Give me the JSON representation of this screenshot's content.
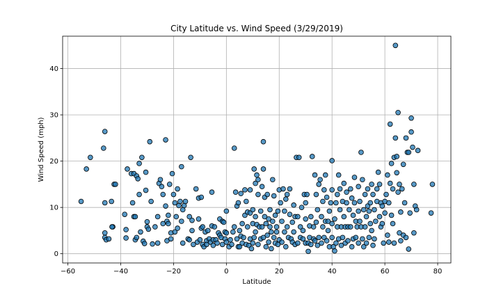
{
  "chart_data": {
    "type": "scatter",
    "title": "City Latitude vs. Wind Speed (3/29/2019)",
    "xlabel": "Latitude",
    "ylabel": "Wind Speed (mph)",
    "xlim": [
      -62,
      85
    ],
    "ylim": [
      -2,
      47
    ],
    "xticks": [
      -60,
      -40,
      -20,
      0,
      20,
      40,
      60,
      80
    ],
    "yticks": [
      0,
      10,
      20,
      30,
      40
    ],
    "xtick_labels": [
      "−60",
      "−40",
      "−20",
      "0",
      "20",
      "40",
      "60",
      "80"
    ],
    "ytick_labels": [
      "0",
      "10",
      "20",
      "30",
      "40"
    ],
    "grid": true,
    "colors": {
      "marker_fill": "#1f77b4",
      "marker_edge": "#000000",
      "grid": "#b0b0b0"
    },
    "points": [
      [
        -55,
        11.3
      ],
      [
        -53,
        18.3
      ],
      [
        -51.5,
        20.8
      ],
      [
        -46.5,
        22.8
      ],
      [
        -46,
        26.4
      ],
      [
        -46,
        11
      ],
      [
        -46,
        4.5
      ],
      [
        -46,
        3.5
      ],
      [
        -45.5,
        3
      ],
      [
        -44.5,
        3.2
      ],
      [
        -43.5,
        11.3
      ],
      [
        -43,
        5.8
      ],
      [
        -43.3,
        5.8
      ],
      [
        -42.5,
        15
      ],
      [
        -42,
        15
      ],
      [
        -38.5,
        8.5
      ],
      [
        -38,
        5.2
      ],
      [
        -38,
        3.4
      ],
      [
        -37.5,
        18.3
      ],
      [
        -36,
        17.3
      ],
      [
        -35.5,
        11
      ],
      [
        -35,
        17.3
      ],
      [
        -35,
        8
      ],
      [
        -34.5,
        3
      ],
      [
        -34.5,
        8
      ],
      [
        -34,
        16.8
      ],
      [
        -34,
        3.5
      ],
      [
        -33.5,
        16.2
      ],
      [
        -33,
        19.5
      ],
      [
        -33,
        12.8
      ],
      [
        -32.5,
        4.7
      ],
      [
        -32,
        20.8
      ],
      [
        -31.5,
        2.7
      ],
      [
        -31,
        2.2
      ],
      [
        -30.5,
        17.6
      ],
      [
        -30.5,
        13.7
      ],
      [
        -30,
        6.9
      ],
      [
        -30,
        5.8
      ],
      [
        -29.5,
        5.3
      ],
      [
        -29,
        24.2
      ],
      [
        -28.5,
        11.3
      ],
      [
        -28,
        2.1
      ],
      [
        -27,
        5.8
      ],
      [
        -26,
        8
      ],
      [
        -26,
        2.3
      ],
      [
        -25.5,
        15.2
      ],
      [
        -25,
        16
      ],
      [
        -24.5,
        14.5
      ],
      [
        -24,
        12.8
      ],
      [
        -24,
        6.5
      ],
      [
        -23,
        24.6
      ],
      [
        -23,
        10.3
      ],
      [
        -22.5,
        7
      ],
      [
        -22.5,
        2.8
      ],
      [
        -22,
        8.3
      ],
      [
        -22,
        6.5
      ],
      [
        -21.5,
        15
      ],
      [
        -21,
        4.5
      ],
      [
        -21,
        3.2
      ],
      [
        -20.5,
        17.3
      ],
      [
        -20,
        12.8
      ],
      [
        -19.5,
        11
      ],
      [
        -19.5,
        4.7
      ],
      [
        -19,
        8
      ],
      [
        -18.5,
        14
      ],
      [
        -18.5,
        5.5
      ],
      [
        -18,
        10.4
      ],
      [
        -17.5,
        11.3
      ],
      [
        -17,
        18.8
      ],
      [
        -17,
        7
      ],
      [
        -16.5,
        2.3
      ],
      [
        -16.5,
        9.5
      ],
      [
        -16,
        10.4
      ],
      [
        -15.5,
        11.3
      ],
      [
        -14.5,
        3.2
      ],
      [
        -14,
        8
      ],
      [
        -14,
        3
      ],
      [
        -13.5,
        20.8
      ],
      [
        -13,
        7.2
      ],
      [
        -13,
        5
      ],
      [
        -12.5,
        2
      ],
      [
        -11.5,
        14
      ],
      [
        -11,
        2.5
      ],
      [
        -10.5,
        12
      ],
      [
        -10.5,
        7.5
      ],
      [
        -10,
        3
      ],
      [
        -9.5,
        5.5
      ],
      [
        -9.5,
        12.2
      ],
      [
        -9,
        2
      ],
      [
        -9,
        5.8
      ],
      [
        -8.5,
        1.5
      ],
      [
        -8,
        4.7
      ],
      [
        -7.5,
        2.8
      ],
      [
        -7.5,
        2
      ],
      [
        -7,
        5
      ],
      [
        -6.5,
        3.2
      ],
      [
        -6,
        2.5
      ],
      [
        -5.5,
        13.3
      ],
      [
        -5.5,
        6
      ],
      [
        -5,
        3
      ],
      [
        -5,
        1.8
      ],
      [
        -4.5,
        5.8
      ],
      [
        -4,
        3
      ],
      [
        -3.5,
        2.3
      ],
      [
        -3,
        4.5
      ],
      [
        -2.5,
        7.5
      ],
      [
        -2.5,
        4
      ],
      [
        -2,
        3.5
      ],
      [
        -1.5,
        2
      ],
      [
        -1.5,
        7
      ],
      [
        -1,
        6.8
      ],
      [
        -0.5,
        4.7
      ],
      [
        -0.5,
        3.2
      ],
      [
        0,
        2.5
      ],
      [
        0,
        4.5
      ],
      [
        0,
        9.2
      ],
      [
        1,
        1.5
      ],
      [
        1.5,
        3
      ],
      [
        2,
        2
      ],
      [
        2.5,
        4.7
      ],
      [
        3,
        22.8
      ],
      [
        3,
        5.8
      ],
      [
        3.5,
        13.3
      ],
      [
        4,
        10.3
      ],
      [
        4,
        3.2
      ],
      [
        4.5,
        1.5
      ],
      [
        4.5,
        11
      ],
      [
        5,
        5
      ],
      [
        5,
        1.5
      ],
      [
        5.5,
        13
      ],
      [
        5.5,
        3.8
      ],
      [
        6,
        6.5
      ],
      [
        6,
        2.3
      ],
      [
        6.5,
        3.5
      ],
      [
        7,
        8.3
      ],
      [
        7,
        13.8
      ],
      [
        7.5,
        2
      ],
      [
        7.5,
        11.3
      ],
      [
        8,
        5.8
      ],
      [
        8,
        9
      ],
      [
        8.5,
        1.8
      ],
      [
        9,
        13.8
      ],
      [
        9,
        8.8
      ],
      [
        9,
        3.2
      ],
      [
        9.5,
        1.1
      ],
      [
        10,
        9.5
      ],
      [
        10,
        6.5
      ],
      [
        10,
        2.3
      ],
      [
        10.5,
        18.3
      ],
      [
        10.5,
        3.5
      ],
      [
        11,
        15.2
      ],
      [
        11,
        8
      ],
      [
        11,
        4.7
      ],
      [
        11.5,
        6.3
      ],
      [
        11.5,
        17
      ],
      [
        12,
        12.8
      ],
      [
        12,
        16
      ],
      [
        12,
        2
      ],
      [
        12.5,
        5.8
      ],
      [
        13,
        3.2
      ],
      [
        13,
        9.2
      ],
      [
        13.5,
        14.5
      ],
      [
        13.5,
        5.8
      ],
      [
        14,
        24.2
      ],
      [
        14,
        3.5
      ],
      [
        14,
        18.3
      ],
      [
        14.5,
        12.2
      ],
      [
        14.5,
        8
      ],
      [
        15,
        6.5
      ],
      [
        15,
        1.5
      ],
      [
        15.5,
        4
      ],
      [
        15.5,
        12.8
      ],
      [
        16,
        7.5
      ],
      [
        16,
        2.5
      ],
      [
        16.5,
        5.8
      ],
      [
        16.5,
        9.5
      ],
      [
        17,
        1.1
      ],
      [
        17,
        4.7
      ],
      [
        17.5,
        7
      ],
      [
        17.5,
        16
      ],
      [
        18,
        3.5
      ],
      [
        18,
        12.5
      ],
      [
        18.5,
        2.3
      ],
      [
        18.5,
        8.3
      ],
      [
        19,
        4.7
      ],
      [
        19,
        5.8
      ],
      [
        19.5,
        2
      ],
      [
        19.5,
        9.2
      ],
      [
        20,
        13.8
      ],
      [
        20,
        3
      ],
      [
        20.5,
        11
      ],
      [
        21,
        7
      ],
      [
        21,
        2.5
      ],
      [
        21.5,
        14
      ],
      [
        22,
        9.2
      ],
      [
        22,
        4.7
      ],
      [
        22.5,
        1.5
      ],
      [
        22.5,
        11.8
      ],
      [
        23,
        12.8
      ],
      [
        23,
        5.8
      ],
      [
        23.5,
        3.5
      ],
      [
        24,
        14
      ],
      [
        24,
        8.5
      ],
      [
        24.5,
        3.2
      ],
      [
        25,
        2.5
      ],
      [
        25,
        6.8
      ],
      [
        25.5,
        10.5
      ],
      [
        25.5,
        4.7
      ],
      [
        26,
        8
      ],
      [
        26,
        2
      ],
      [
        26.5,
        20.8
      ],
      [
        27,
        2.3
      ],
      [
        27,
        8
      ],
      [
        27.5,
        20.8
      ],
      [
        28,
        5.8
      ],
      [
        28,
        3.5
      ],
      [
        28.5,
        10
      ],
      [
        29,
        3.2
      ],
      [
        29,
        5
      ],
      [
        29.5,
        12.8
      ],
      [
        30,
        11
      ],
      [
        30,
        2.3
      ],
      [
        30,
        7.5
      ],
      [
        30.5,
        12.8
      ],
      [
        31,
        2.3
      ],
      [
        31,
        0.5
      ],
      [
        31.5,
        6
      ],
      [
        31.5,
        3.5
      ],
      [
        32,
        8
      ],
      [
        32,
        2
      ],
      [
        32.5,
        21
      ],
      [
        33,
        5.8
      ],
      [
        33,
        3.2
      ],
      [
        33.5,
        17
      ],
      [
        33.5,
        2.8
      ],
      [
        34,
        12.8
      ],
      [
        34,
        6.8
      ],
      [
        34.5,
        1.8
      ],
      [
        34.5,
        9.5
      ],
      [
        35,
        15
      ],
      [
        35,
        3.5
      ],
      [
        35.5,
        16
      ],
      [
        36,
        2.3
      ],
      [
        36,
        8
      ],
      [
        36.5,
        11.3
      ],
      [
        36.5,
        5.8
      ],
      [
        37,
        13.8
      ],
      [
        37,
        3.5
      ],
      [
        37.5,
        17
      ],
      [
        37.5,
        7
      ],
      [
        38,
        2.8
      ],
      [
        38,
        12.2
      ],
      [
        38.5,
        7
      ],
      [
        38.5,
        5
      ],
      [
        39,
        1.5
      ],
      [
        39,
        9.2
      ],
      [
        39.5,
        11
      ],
      [
        40,
        20.1
      ],
      [
        40,
        13.8
      ],
      [
        40,
        6.5
      ],
      [
        40,
        3.5
      ],
      [
        40.5,
        1.5
      ],
      [
        41,
        0.6
      ],
      [
        41,
        7.5
      ],
      [
        41.5,
        2.3
      ],
      [
        41.5,
        11
      ],
      [
        42,
        12.8
      ],
      [
        42,
        5.8
      ],
      [
        42.5,
        17
      ],
      [
        42.5,
        3.2
      ],
      [
        43,
        9.5
      ],
      [
        43,
        14
      ],
      [
        43.5,
        5.8
      ],
      [
        43.5,
        1.8
      ],
      [
        44,
        11.3
      ],
      [
        44,
        3.5
      ],
      [
        44.5,
        15.2
      ],
      [
        44.5,
        8
      ],
      [
        45,
        5.8
      ],
      [
        45,
        2.3
      ],
      [
        45.5,
        11
      ],
      [
        45.5,
        13.3
      ],
      [
        46,
        5.8
      ],
      [
        46,
        2.8
      ],
      [
        46.5,
        9.5
      ],
      [
        47,
        14
      ],
      [
        47,
        5.8
      ],
      [
        47.5,
        1.5
      ],
      [
        47.5,
        12
      ],
      [
        48,
        3.2
      ],
      [
        48,
        8.3
      ],
      [
        48.5,
        16.5
      ],
      [
        48.5,
        11
      ],
      [
        49,
        7
      ],
      [
        49,
        3.5
      ],
      [
        49.5,
        5.8
      ],
      [
        50,
        14.5
      ],
      [
        50,
        9.2
      ],
      [
        50,
        2.3
      ],
      [
        50.5,
        11.3
      ],
      [
        50.5,
        7
      ],
      [
        51,
        21.9
      ],
      [
        51,
        5.8
      ],
      [
        51.5,
        16
      ],
      [
        51.5,
        3.2
      ],
      [
        52,
        9.5
      ],
      [
        52,
        1.5
      ],
      [
        52.5,
        12.8
      ],
      [
        52.5,
        5.8
      ],
      [
        53,
        8
      ],
      [
        53,
        2.3
      ],
      [
        53.5,
        10.3
      ],
      [
        53.5,
        14
      ],
      [
        54,
        9.2
      ],
      [
        54,
        3.5
      ],
      [
        54.5,
        11
      ],
      [
        54.5,
        6.5
      ],
      [
        55,
        15
      ],
      [
        55,
        5
      ],
      [
        55.5,
        1.8
      ],
      [
        55.5,
        12.8
      ],
      [
        56,
        9.5
      ],
      [
        56,
        3.2
      ],
      [
        56.5,
        7
      ],
      [
        57,
        14
      ],
      [
        57,
        11.3
      ],
      [
        57.5,
        17.6
      ],
      [
        58,
        15
      ],
      [
        58,
        8
      ],
      [
        58.5,
        5.8
      ],
      [
        58.5,
        11
      ],
      [
        59,
        6.5
      ],
      [
        59,
        10.3
      ],
      [
        59.5,
        2.3
      ],
      [
        60,
        11.3
      ],
      [
        60,
        8.8
      ],
      [
        60.5,
        12.8
      ],
      [
        61,
        4
      ],
      [
        61,
        17
      ],
      [
        61.5,
        2.5
      ],
      [
        61.5,
        11
      ],
      [
        62,
        28
      ],
      [
        62,
        15.2
      ],
      [
        62.5,
        19.5
      ],
      [
        62.5,
        8.3
      ],
      [
        63,
        14
      ],
      [
        63,
        6.5
      ],
      [
        63.5,
        20.8
      ],
      [
        63.5,
        2.3
      ],
      [
        64,
        45
      ],
      [
        64,
        25
      ],
      [
        64.5,
        21
      ],
      [
        64.5,
        17.5
      ],
      [
        65,
        30.5
      ],
      [
        65,
        13.3
      ],
      [
        65.5,
        15
      ],
      [
        65.5,
        4.5
      ],
      [
        66,
        9
      ],
      [
        66,
        2.8
      ],
      [
        66.5,
        14
      ],
      [
        67,
        19.3
      ],
      [
        67,
        4
      ],
      [
        67.5,
        11
      ],
      [
        68,
        25
      ],
      [
        68,
        3.5
      ],
      [
        68.5,
        21.9
      ],
      [
        69,
        21.9
      ],
      [
        69,
        1
      ],
      [
        69.5,
        8.8
      ],
      [
        70,
        29.3
      ],
      [
        70,
        26.3
      ],
      [
        70.5,
        23
      ],
      [
        71,
        15
      ],
      [
        71,
        4.5
      ],
      [
        71.5,
        10.3
      ],
      [
        72,
        9.5
      ],
      [
        72.5,
        22.3
      ],
      [
        77.5,
        8.8
      ],
      [
        78,
        15
      ]
    ]
  }
}
